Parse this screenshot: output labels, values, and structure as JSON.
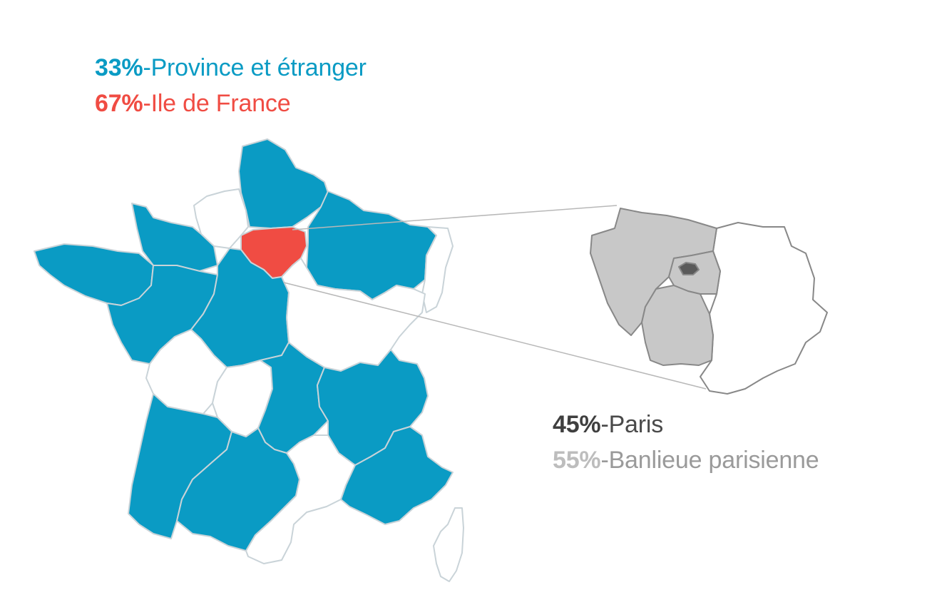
{
  "colors": {
    "province": "#0a9bc4",
    "idf": "#f04c43",
    "paris": "#5a5a5a",
    "banlieue": "#c8c8c8",
    "region_empty": "#ffffff",
    "border": "#c9d3d8"
  },
  "legend_top": [
    {
      "pct": "33%",
      "sep": " - ",
      "label": "Province et étranger",
      "color": "#0a9bc4"
    },
    {
      "pct": "67%",
      "sep": " - ",
      "label": "Ile de France",
      "color": "#f04c43"
    }
  ],
  "legend_bottom": [
    {
      "pct": "45%",
      "sep": " - ",
      "label": "Paris",
      "color": "#3f3f3f",
      "label_color": "#4a4a4a"
    },
    {
      "pct": "55%",
      "sep": " - ",
      "label": "Banlieue parisienne",
      "color": "#bdbdbd",
      "label_color": "#9a9a9a"
    }
  ],
  "map": {
    "highlighted_region": "Ile de France",
    "inset_region": "Ile de France"
  }
}
